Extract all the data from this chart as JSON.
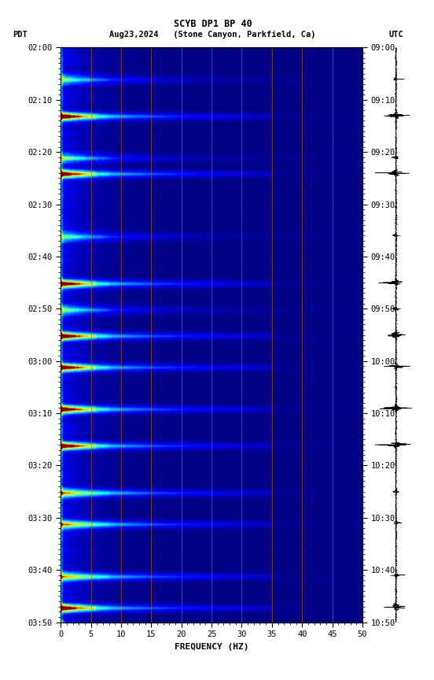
{
  "title_line1": "SCYB DP1 BP 40",
  "xlabel": "FREQUENCY (HZ)",
  "freq_min": 0,
  "freq_max": 50,
  "pdt_labels": [
    "02:00",
    "02:10",
    "02:20",
    "02:30",
    "02:40",
    "02:50",
    "03:00",
    "03:10",
    "03:20",
    "03:30",
    "03:40",
    "03:50"
  ],
  "utc_labels": [
    "09:00",
    "09:10",
    "09:20",
    "09:30",
    "09:40",
    "09:50",
    "10:00",
    "10:10",
    "10:20",
    "10:30",
    "10:40",
    "10:50"
  ],
  "freq_ticks": [
    0,
    5,
    10,
    15,
    20,
    25,
    30,
    35,
    40,
    45,
    50
  ],
  "background_color": "#ffffff",
  "colormap": "jet",
  "fig_width": 5.52,
  "fig_height": 8.64,
  "dpi": 100,
  "vertical_lines_freq": [
    5,
    10,
    15,
    20,
    25,
    30,
    35,
    40,
    45
  ],
  "vertical_line_color": "#cc6600",
  "n_time_steps": 220,
  "n_freq_steps": 500,
  "event_rows": [
    12,
    26,
    42,
    48,
    72,
    90,
    100,
    110,
    122,
    138,
    152,
    170,
    182,
    202,
    214
  ],
  "strong_event_rows": [
    26,
    48,
    90,
    110,
    122,
    138,
    152,
    214
  ],
  "band_rows": [
    26,
    48,
    90,
    110,
    122,
    138,
    152,
    170,
    182,
    202,
    214
  ]
}
